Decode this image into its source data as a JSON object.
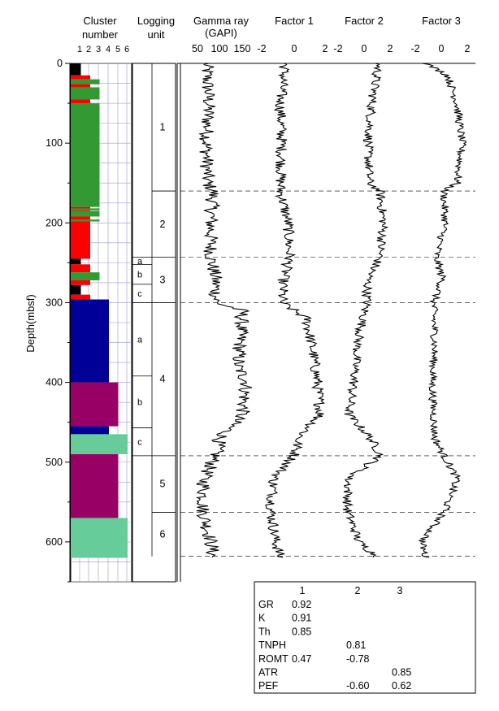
{
  "chart_data": {
    "type": "line",
    "orientation": "depth-vertical",
    "y_axis": {
      "label": "Depth(mbsf)",
      "range": [
        0,
        650
      ],
      "ticks": [
        0,
        100,
        200,
        300,
        400,
        500,
        600
      ],
      "inverted": true
    },
    "columns": {
      "cluster": {
        "title_line1": "Cluster",
        "title_line2": "number",
        "ticks": [
          "1",
          "2",
          "3",
          "4",
          "5",
          "6"
        ]
      },
      "units": {
        "title_line1": "Logging",
        "title_line2": "unit"
      },
      "gamma": {
        "title_line1": "Gamma ray",
        "title_line2": "(GAPI)",
        "ticks": [
          "50",
          "100",
          "150"
        ]
      },
      "factor1": {
        "title": "Factor 1",
        "ticks": [
          "-2",
          "0",
          "2"
        ]
      },
      "factor2": {
        "title": "Factor 2",
        "ticks": [
          "-2",
          "0",
          "2"
        ]
      },
      "factor3": {
        "title": "Factor 3",
        "ticks": [
          "-2",
          "0",
          "2"
        ]
      }
    },
    "cluster_colors": {
      "1": "#000000",
      "2": "#ff0000",
      "3": "#339933",
      "4": "#000099",
      "5": "#990066",
      "6": "#66cc99"
    },
    "cluster_blocks": [
      {
        "from": 0,
        "to": 15,
        "cluster": 1
      },
      {
        "from": 15,
        "to": 20,
        "cluster": 2
      },
      {
        "from": 20,
        "to": 25,
        "cluster": 3
      },
      {
        "from": 25,
        "to": 30,
        "cluster": 2
      },
      {
        "from": 30,
        "to": 45,
        "cluster": 3
      },
      {
        "from": 45,
        "to": 50,
        "cluster": 2
      },
      {
        "from": 50,
        "to": 180,
        "cluster": 3
      },
      {
        "from": 180,
        "to": 185,
        "cluster": 2
      },
      {
        "from": 185,
        "to": 192,
        "cluster": 3
      },
      {
        "from": 192,
        "to": 245,
        "cluster": 2
      },
      {
        "from": 245,
        "to": 252,
        "cluster": 1
      },
      {
        "from": 252,
        "to": 262,
        "cluster": 2
      },
      {
        "from": 262,
        "to": 272,
        "cluster": 3
      },
      {
        "from": 272,
        "to": 278,
        "cluster": 2
      },
      {
        "from": 278,
        "to": 290,
        "cluster": 1
      },
      {
        "from": 290,
        "to": 296,
        "cluster": 2
      },
      {
        "from": 296,
        "to": 400,
        "cluster": 4
      },
      {
        "from": 400,
        "to": 455,
        "cluster": 5
      },
      {
        "from": 455,
        "to": 465,
        "cluster": 4
      },
      {
        "from": 465,
        "to": 490,
        "cluster": 6
      },
      {
        "from": 490,
        "to": 570,
        "cluster": 5
      },
      {
        "from": 570,
        "to": 620,
        "cluster": 6
      }
    ],
    "cluster_stripes": [
      {
        "depth": 25,
        "cluster": 3
      },
      {
        "depth": 35,
        "cluster": 3
      },
      {
        "depth": 44,
        "cluster": 3
      },
      {
        "depth": 110,
        "cluster": 3
      },
      {
        "depth": 183,
        "cluster": 3
      },
      {
        "depth": 197,
        "cluster": 3
      },
      {
        "depth": 405,
        "cluster": 5
      },
      {
        "depth": 418,
        "cluster": 5
      },
      {
        "depth": 432,
        "cluster": 5
      },
      {
        "depth": 447,
        "cluster": 5
      },
      {
        "depth": 476,
        "cluster": 6
      },
      {
        "depth": 500,
        "cluster": 5
      },
      {
        "depth": 523,
        "cluster": 5
      },
      {
        "depth": 548,
        "cluster": 5
      }
    ],
    "units": [
      {
        "label": "1",
        "from": 0,
        "to": 160
      },
      {
        "label": "2",
        "from": 160,
        "to": 243
      },
      {
        "label": "3",
        "from": 243,
        "to": 300
      },
      {
        "label": "4",
        "from": 300,
        "to": 492
      },
      {
        "label": "5",
        "from": 492,
        "to": 563
      },
      {
        "label": "6",
        "from": 563,
        "to": 618
      }
    ],
    "subunits": [
      {
        "label": "a",
        "from": 243,
        "to": 252
      },
      {
        "label": "b",
        "from": 252,
        "to": 277
      },
      {
        "label": "c",
        "from": 277,
        "to": 300
      },
      {
        "label": "a",
        "from": 300,
        "to": 392
      },
      {
        "label": "b",
        "from": 392,
        "to": 457
      },
      {
        "label": "c",
        "from": 457,
        "to": 492
      }
    ],
    "boundaries": [
      160,
      243,
      300,
      492,
      563,
      618
    ],
    "curves": {
      "gamma": [
        [
          0,
          70
        ],
        [
          20,
          72
        ],
        [
          50,
          75
        ],
        [
          100,
          70
        ],
        [
          150,
          72
        ],
        [
          160,
          85
        ],
        [
          200,
          80
        ],
        [
          243,
          80
        ],
        [
          270,
          90
        ],
        [
          300,
          92
        ],
        [
          310,
          150
        ],
        [
          350,
          145
        ],
        [
          380,
          140
        ],
        [
          400,
          160
        ],
        [
          440,
          150
        ],
        [
          470,
          100
        ],
        [
          492,
          90
        ],
        [
          520,
          65
        ],
        [
          560,
          62
        ],
        [
          600,
          80
        ],
        [
          620,
          85
        ]
      ],
      "factor1": [
        [
          0,
          -0.6
        ],
        [
          50,
          -0.9
        ],
        [
          100,
          -0.8
        ],
        [
          160,
          -0.9
        ],
        [
          200,
          -0.4
        ],
        [
          243,
          -0.3
        ],
        [
          270,
          -0.7
        ],
        [
          300,
          -0.8
        ],
        [
          320,
          0.8
        ],
        [
          360,
          1.2
        ],
        [
          400,
          1.5
        ],
        [
          440,
          1.7
        ],
        [
          470,
          0.3
        ],
        [
          492,
          0.0
        ],
        [
          520,
          -1.3
        ],
        [
          560,
          -1.5
        ],
        [
          600,
          -1.2
        ],
        [
          620,
          -0.9
        ]
      ],
      "factor2": [
        [
          0,
          1.1
        ],
        [
          50,
          0.6
        ],
        [
          100,
          0.3
        ],
        [
          150,
          0.4
        ],
        [
          160,
          1.2
        ],
        [
          200,
          1.5
        ],
        [
          243,
          1.2
        ],
        [
          270,
          0.3
        ],
        [
          300,
          0.2
        ],
        [
          350,
          -0.5
        ],
        [
          400,
          -0.8
        ],
        [
          440,
          -1.2
        ],
        [
          470,
          0.5
        ],
        [
          492,
          1.3
        ],
        [
          520,
          -1.2
        ],
        [
          560,
          -1.3
        ],
        [
          600,
          -0.4
        ],
        [
          620,
          1.1
        ]
      ],
      "factor3": [
        [
          0,
          -1.2
        ],
        [
          15,
          0.5
        ],
        [
          50,
          1.2
        ],
        [
          100,
          1.6
        ],
        [
          150,
          1.2
        ],
        [
          160,
          0.2
        ],
        [
          200,
          0.3
        ],
        [
          243,
          -0.4
        ],
        [
          270,
          0.1
        ],
        [
          300,
          -0.6
        ],
        [
          350,
          -0.5
        ],
        [
          400,
          -0.7
        ],
        [
          440,
          -0.6
        ],
        [
          470,
          -0.5
        ],
        [
          492,
          0.2
        ],
        [
          520,
          1.2
        ],
        [
          560,
          0.3
        ],
        [
          600,
          -1.5
        ],
        [
          620,
          -1.2
        ]
      ]
    },
    "loadings_table": {
      "headers": [
        "1",
        "2",
        "3"
      ],
      "rows": [
        {
          "name": "GR",
          "f1": "0.92",
          "f2": "",
          "f3": ""
        },
        {
          "name": "K",
          "f1": "0.91",
          "f2": "",
          "f3": ""
        },
        {
          "name": "Th",
          "f1": "0.85",
          "f2": "",
          "f3": ""
        },
        {
          "name": "TNPH",
          "f1": "",
          "f2": "0.81",
          "f3": ""
        },
        {
          "name": "ROMT",
          "f1": "0.47",
          "f2": "-0.78",
          "f3": ""
        },
        {
          "name": "ATR",
          "f1": "",
          "f2": "",
          "f3": "0.85"
        },
        {
          "name": "PEF",
          "f1": "",
          "f2": "-0.60",
          "f3": "0.62"
        }
      ]
    }
  }
}
